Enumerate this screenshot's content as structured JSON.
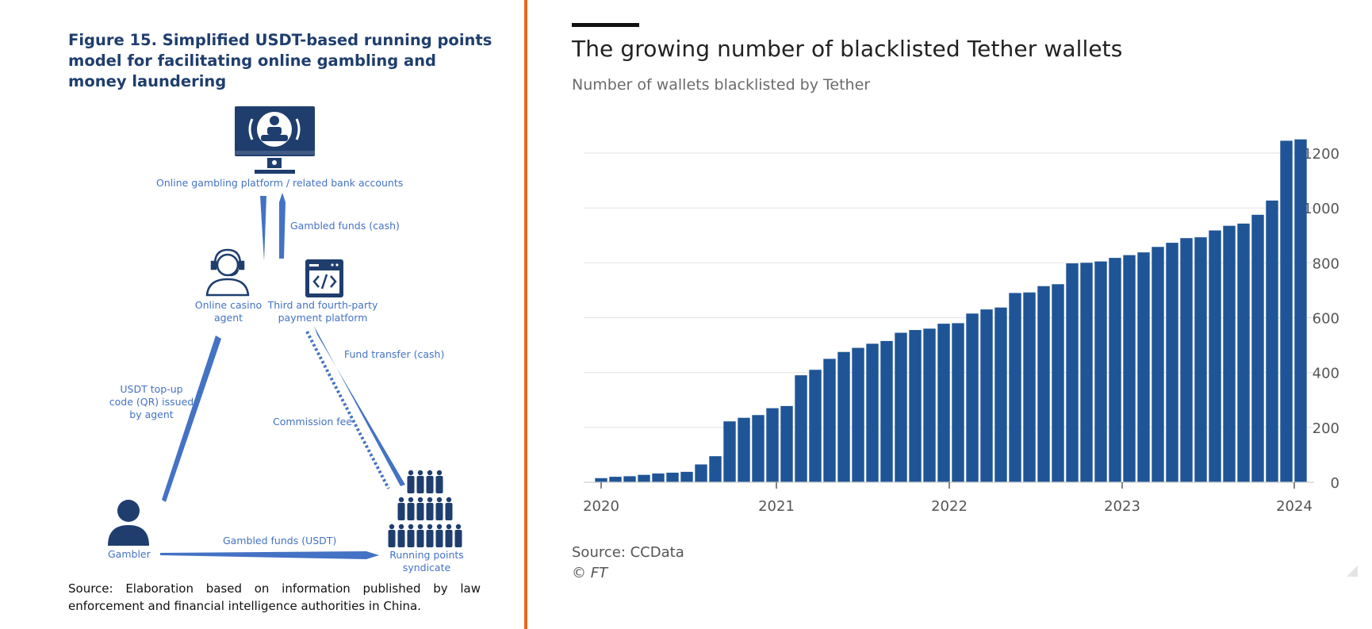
{
  "left": {
    "figure_title": "Figure 15. Simplified USDT-based running points model for facilitating online gambling and money laundering",
    "nodes": {
      "platform": "Online gambling platform / related bank accounts",
      "agent": "Online casino agent",
      "payment": "Third and fourth-party payment platform",
      "gambler": "Gambler",
      "syndicate": "Running points syndicate"
    },
    "edges": {
      "gambled_cash": "Gambled funds (cash)",
      "fund_transfer": "Fund transfer (cash)",
      "usdt_topup": "USDT top-up code (QR) issued by agent",
      "commission": "Commission fee",
      "gambled_usdt": "Gambled funds (USDT)"
    },
    "source": "Source: Elaboration based on information published by law enforcement and financial intelligence authorities in China."
  },
  "right": {
    "title": "The growing number of blacklisted Tether wallets",
    "subtitle": "Number of wallets blacklisted by Tether",
    "source": "Source: CCData",
    "copyright": "© FT"
  },
  "colors": {
    "bar": "#1f5596",
    "diagram_navy": "#1f3e6e",
    "diagram_blue": "#4472c4",
    "divider": "#e8671c"
  },
  "chart_data": {
    "type": "bar",
    "title": "The growing number of blacklisted Tether wallets",
    "subtitle": "Number of wallets blacklisted by Tether",
    "xlabel": "",
    "ylabel": "",
    "x_tick_labels": [
      "2020",
      "2021",
      "2022",
      "2023",
      "2024"
    ],
    "y_ticks": [
      0,
      200,
      400,
      600,
      800,
      1000,
      1200
    ],
    "ylim": [
      0,
      1250
    ],
    "y_axis_position": "right",
    "grid": true,
    "values": [
      15,
      20,
      22,
      27,
      32,
      35,
      38,
      65,
      95,
      222,
      235,
      245,
      270,
      278,
      390,
      410,
      450,
      475,
      490,
      505,
      515,
      545,
      555,
      560,
      578,
      580,
      615,
      630,
      637,
      690,
      692,
      715,
      722,
      798,
      800,
      805,
      818,
      828,
      838,
      858,
      873,
      890,
      893,
      918,
      935,
      943,
      975,
      1027,
      1245,
      1250
    ]
  }
}
